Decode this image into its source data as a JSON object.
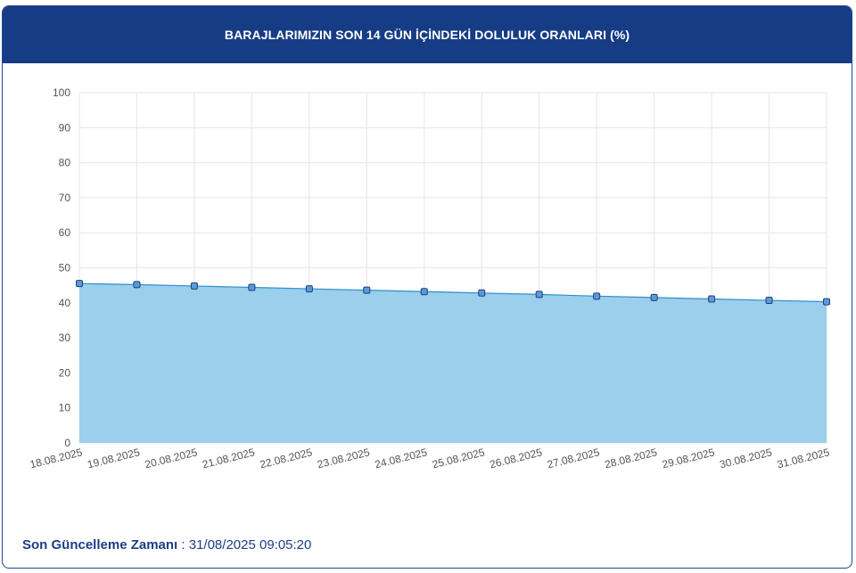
{
  "header": {
    "title": "BARAJLARIMIZIN SON 14 GÜN İÇİNDEKİ DOLULUK ORANLARI (%)"
  },
  "footer": {
    "label": "Son Güncelleme Zamanı",
    "separator": " : ",
    "value": "31/08/2025 09:05:20"
  },
  "colors": {
    "header_bg": "#163c85",
    "area_fill": "#9bcfec",
    "line": "#2f8ec9",
    "marker_fill": "#5b9bd5",
    "marker_stroke": "#1f3f7f",
    "grid": "#e6e6e6",
    "footer_text": "#1b3f86"
  },
  "chart_data": {
    "type": "area",
    "title": "BARAJLARIMIZIN SON 14 GÜN İÇİNDEKİ DOLULUK ORANLARI (%)",
    "xlabel": "",
    "ylabel": "",
    "categories": [
      "18.08.2025",
      "19.08.2025",
      "20.08.2025",
      "21.08.2025",
      "22.08.2025",
      "23.08.2025",
      "24.08.2025",
      "25.08.2025",
      "26.08.2025",
      "27.08.2025",
      "28.08.2025",
      "29.08.2025",
      "30.08.2025",
      "31.08.2025"
    ],
    "values": [
      45.5,
      45.2,
      44.8,
      44.4,
      44.0,
      43.6,
      43.2,
      42.8,
      42.4,
      41.9,
      41.5,
      41.1,
      40.7,
      40.3
    ],
    "ylim": [
      0,
      100
    ],
    "yticks": [
      0,
      10,
      20,
      30,
      40,
      50,
      60,
      70,
      80,
      90,
      100
    ],
    "grid": true,
    "legend": "none",
    "markers": "square"
  }
}
